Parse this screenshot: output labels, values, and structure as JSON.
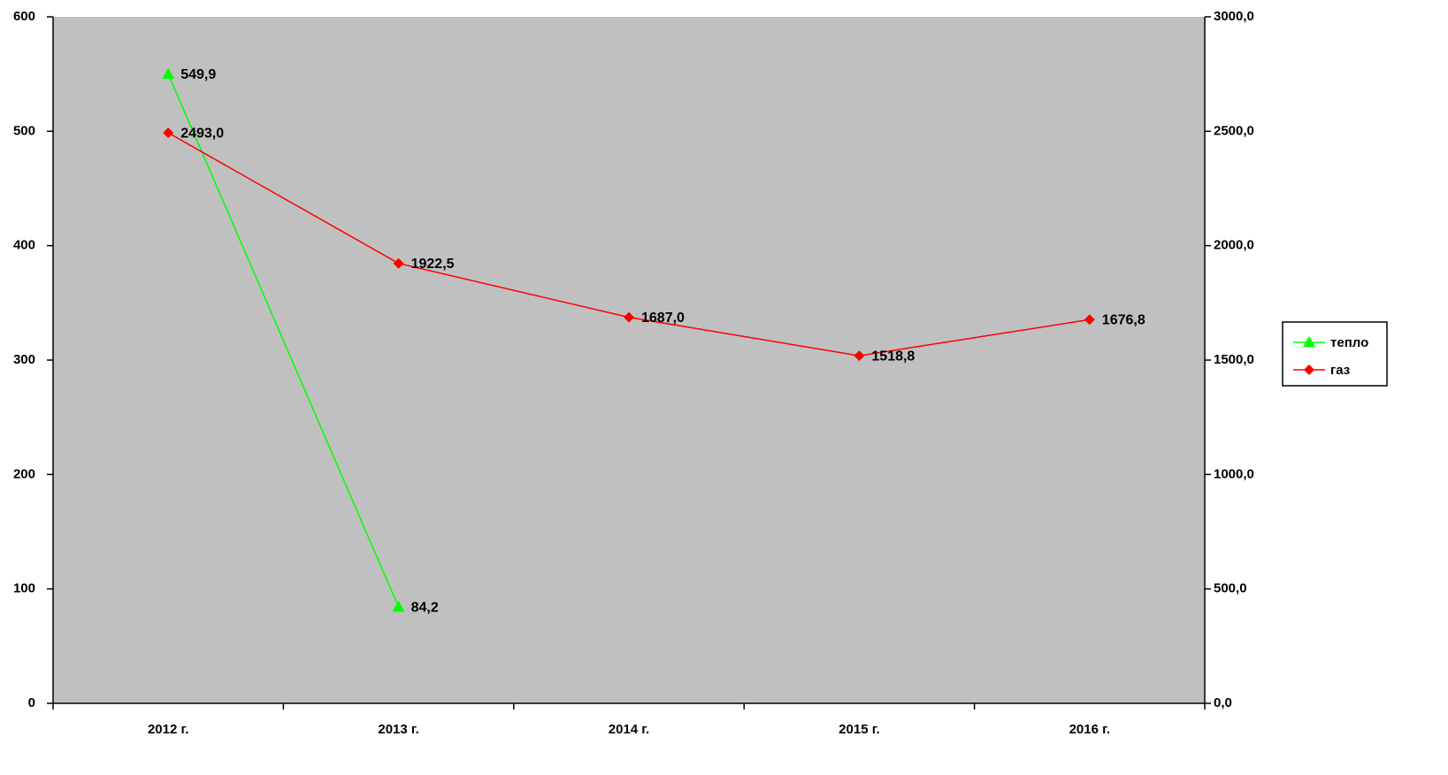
{
  "chart_data": {
    "type": "line",
    "title": "",
    "xlabel": "",
    "ylabel": "",
    "categories": [
      "2012 г.",
      "2013 г.",
      "2014 г.",
      "2015 г.",
      "2016 г."
    ],
    "left_axis": {
      "ylim": [
        0,
        600
      ],
      "ticks": [
        0,
        100,
        200,
        300,
        400,
        500,
        600
      ],
      "tick_labels": [
        "0",
        "100",
        "200",
        "300",
        "400",
        "500",
        "600"
      ]
    },
    "right_axis": {
      "ylim": [
        0,
        3000
      ],
      "ticks": [
        0,
        500,
        1000,
        1500,
        2000,
        2500,
        3000
      ],
      "tick_labels": [
        "0,0",
        "500,0",
        "1000,0",
        "1500,0",
        "2000,0",
        "2500,0",
        "3000,0"
      ]
    },
    "series": [
      {
        "name": "тепло",
        "axis": "left",
        "color": "#00ff00",
        "marker": "triangle",
        "values": [
          549.9,
          84.2,
          null,
          null,
          null
        ],
        "labels": [
          "549,9",
          "84,2",
          null,
          null,
          null
        ]
      },
      {
        "name": "газ",
        "axis": "right",
        "color": "#ff0000",
        "marker": "diamond",
        "values": [
          2493.0,
          1922.5,
          1687.0,
          1518.8,
          1676.8
        ],
        "labels": [
          "2493,0",
          "1922,5",
          "1687,0",
          "1518,8",
          "1676,8"
        ]
      }
    ],
    "plot_background": "#c0c0c0",
    "grid": false,
    "legend_position": "right"
  }
}
